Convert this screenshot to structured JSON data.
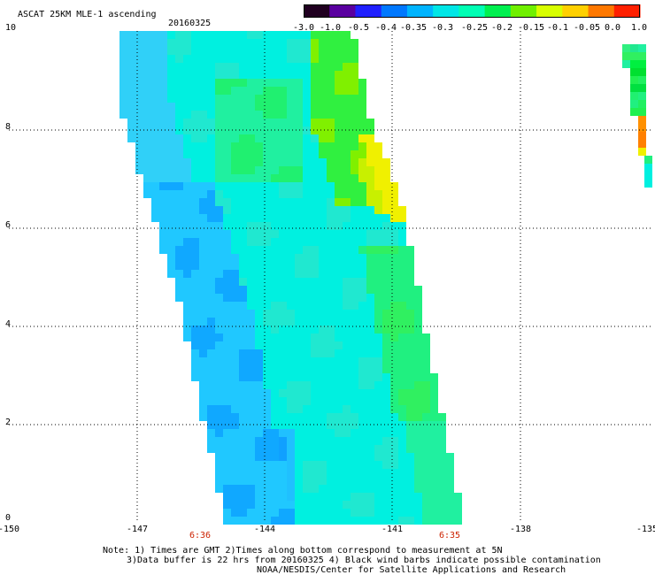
{
  "header": {
    "title": "ASCAT 25KM MLE-1 ascending",
    "date": "20160325"
  },
  "y_axis": {
    "ticks": [
      "10",
      "8",
      "6",
      "4",
      "2",
      "0"
    ]
  },
  "x_axis": {
    "ticks": [
      "-150",
      "-147",
      "-144",
      "-141",
      "-138",
      "-135"
    ]
  },
  "pass_times": [
    "6:36",
    "6:35"
  ],
  "colorbar": {
    "labels": [
      "-3.0",
      "-1.0",
      "-0.5",
      "-0.4",
      "-0.35",
      "-0.3",
      "-0.25",
      "-0.2",
      "-0.15",
      "-0.1",
      "-0.05",
      "0.0",
      "1.0"
    ],
    "colors": [
      "#200020",
      "#5a00a0",
      "#2020ff",
      "#0078ff",
      "#00b4ff",
      "#00e6e6",
      "#00ffb4",
      "#00f050",
      "#70f000",
      "#d8ff00",
      "#ffd000",
      "#ff7800",
      "#ff2000"
    ]
  },
  "notes": [
    "Note: 1) Times are GMT 2)Times along bottom correspond to measurement at 5N",
    "3)Data buffer is 22 hrs from 20160325 4) Black wind barbs indicate possible contamination",
    "NOAA/NESDIS/Center for Satellite Applications and Research"
  ]
}
